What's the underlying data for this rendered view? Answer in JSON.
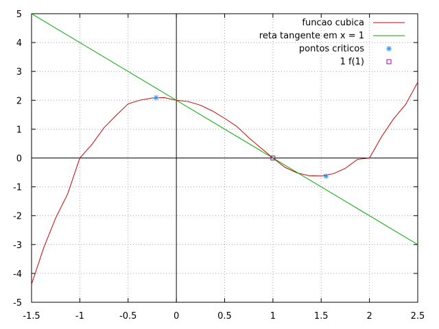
{
  "chart_data": {
    "type": "line",
    "title": "",
    "xlabel": "",
    "ylabel": "",
    "xlim": [
      -1.5,
      2.5
    ],
    "ylim": [
      -5,
      5
    ],
    "grid": true,
    "legend_position": "top-right",
    "x_ticks": [
      -1.5,
      -1,
      -0.5,
      0,
      0.5,
      1,
      1.5,
      2,
      2.5
    ],
    "x_tick_labels": [
      "-1.5",
      "-1",
      "-0.5",
      "0",
      "0.5",
      "1",
      "1.5",
      "2",
      "2.5"
    ],
    "y_ticks": [
      -5,
      -4,
      -3,
      -2,
      -1,
      0,
      1,
      2,
      3,
      4,
      5
    ],
    "y_tick_labels": [
      "-5",
      "-4",
      "-3",
      "-2",
      "-1",
      "0",
      "1",
      "2",
      "3",
      "4",
      "5"
    ],
    "series": [
      {
        "name": "funcao cubica",
        "kind": "line",
        "color": "#cc0000",
        "x": [
          -1.5,
          -1.375,
          -1.25,
          -1.125,
          -1.0,
          -0.875,
          -0.75,
          -0.625,
          -0.5,
          -0.375,
          -0.25,
          -0.125,
          0.0,
          0.125,
          0.25,
          0.375,
          0.5,
          0.625,
          0.75,
          0.875,
          1.0,
          1.125,
          1.25,
          1.375,
          1.5,
          1.625,
          1.75,
          1.875,
          2.0,
          2.125,
          2.25,
          2.375,
          2.5
        ],
        "y": [
          -4.375,
          -3.119,
          -2.078,
          -1.236,
          0.0,
          0.467,
          1.047,
          1.473,
          1.875,
          2.006,
          2.078,
          2.092,
          2.0,
          1.955,
          1.828,
          1.627,
          1.375,
          1.096,
          0.703,
          0.348,
          0.0,
          -0.324,
          -0.516,
          -0.615,
          -0.625,
          -0.545,
          -0.359,
          -0.049,
          0.0,
          0.736,
          1.359,
          1.857,
          2.625
        ]
      },
      {
        "name": "reta tangente em x = 1",
        "kind": "line",
        "color": "#00aa00",
        "x": [
          -1.5,
          2.5
        ],
        "y": [
          5,
          -3
        ]
      },
      {
        "name": "pontos criticos",
        "kind": "points",
        "marker": "asterisk",
        "color": "#1e90ff",
        "x": [
          -0.21,
          1.55
        ],
        "y": [
          2.09,
          -0.63
        ]
      },
      {
        "name": "1 f(1)",
        "kind": "points",
        "marker": "square",
        "color": "#aa00aa",
        "x": [
          1.0
        ],
        "y": [
          0.0
        ]
      }
    ]
  }
}
